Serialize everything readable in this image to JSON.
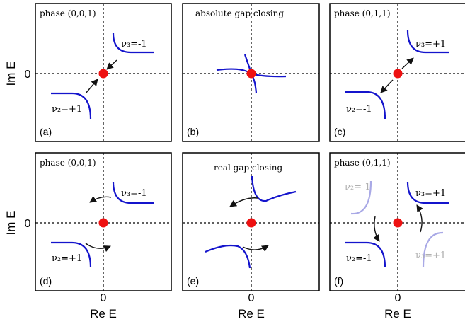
{
  "figure": {
    "colors": {
      "curve": "#1414cc",
      "curve_faded": "#a9a9e6",
      "faded_text": "#b0b0b0",
      "dot": "#ee1111",
      "arrow": "#111111",
      "axis": "#000000"
    },
    "axis_labels": {
      "ylabel_top": "Im E",
      "ylabel_bottom": "Im E",
      "xlabel_a": "Re E",
      "xlabel_b": "Re E",
      "xlabel_c": "Re E",
      "tick_y_top": "0",
      "tick_y_bottom": "0",
      "tick_x_a": "0",
      "tick_x_b": "0",
      "tick_x_c": "0"
    },
    "panels": {
      "a": {
        "title": "phase (0,0,1)",
        "tag": "(a)",
        "lbl1": "ν₃=-1",
        "lbl2": "ν₂=+1"
      },
      "b": {
        "title": "absolute gap closing",
        "tag": "(b)"
      },
      "c": {
        "title": "phase (0,1,1)",
        "tag": "(c)",
        "lbl1": "ν₃=+1",
        "lbl2": "ν₂=-1"
      },
      "d": {
        "title": "phase (0,0,1)",
        "tag": "(d)",
        "lbl1": "ν₃=-1",
        "lbl2": "ν₂=+1"
      },
      "e": {
        "title": "real gap closing",
        "tag": "(e)"
      },
      "f": {
        "title": "phase (0,1,1)",
        "tag": "(f)",
        "lbl1": "ν₃=+1",
        "lbl2": "ν₂=-1",
        "lbl_faded1": "ν₂=-1",
        "lbl_faded2": "ν₃=+1"
      }
    }
  }
}
